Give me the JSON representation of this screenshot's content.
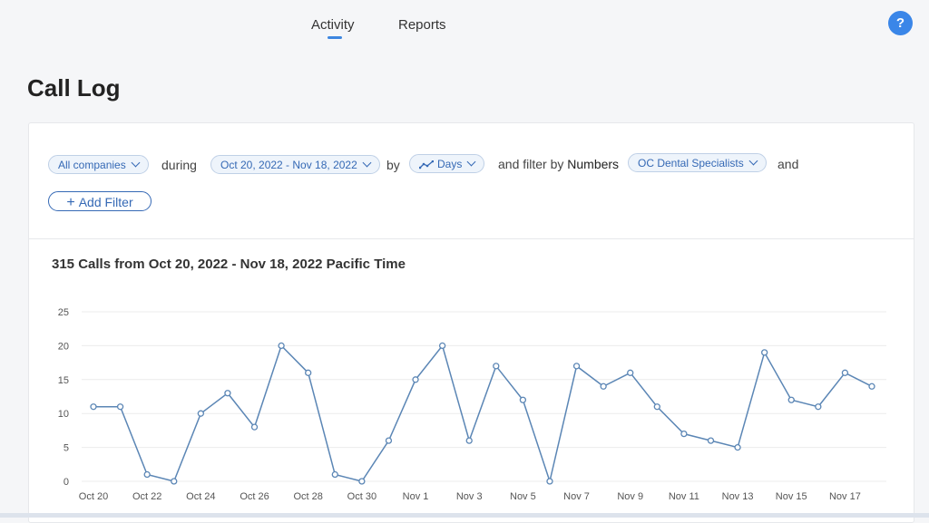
{
  "nav": {
    "tabs": [
      {
        "label": "Activity",
        "active": true
      },
      {
        "label": "Reports",
        "active": false
      }
    ],
    "help_label": "?"
  },
  "page": {
    "title": "Call Log"
  },
  "filters": {
    "company": "All companies",
    "during_label": "during",
    "date_range": "Oct 20, 2022 - Nov 18, 2022",
    "by_label": "by",
    "granularity": "Days",
    "filter_by_label": "and filter by",
    "numbers_label": "Numbers",
    "number": "OC Dental Specialists",
    "and_label": "and",
    "add_filter_label": "Add Filter"
  },
  "accent_color": "#3569b5",
  "line_color": "#5b86b5",
  "chart_data": {
    "type": "line",
    "title": "315 Calls from Oct 20, 2022 - Nov 18, 2022 Pacific Time",
    "xlabel": "",
    "ylabel": "",
    "ylim": [
      0,
      25
    ],
    "yticks": [
      0,
      5,
      10,
      15,
      20,
      25
    ],
    "grid": true,
    "x": [
      "Oct 20",
      "Oct 21",
      "Oct 22",
      "Oct 23",
      "Oct 24",
      "Oct 25",
      "Oct 26",
      "Oct 27",
      "Oct 28",
      "Oct 29",
      "Oct 30",
      "Oct 31",
      "Nov 1",
      "Nov 2",
      "Nov 3",
      "Nov 4",
      "Nov 5",
      "Nov 6",
      "Nov 7",
      "Nov 8",
      "Nov 9",
      "Nov 10",
      "Nov 11",
      "Nov 12",
      "Nov 13",
      "Nov 14",
      "Nov 15",
      "Nov 16",
      "Nov 17",
      "Nov 18"
    ],
    "xtick_labels": [
      "Oct 20",
      "Oct 22",
      "Oct 24",
      "Oct 26",
      "Oct 28",
      "Oct 30",
      "Nov 1",
      "Nov 3",
      "Nov 5",
      "Nov 7",
      "Nov 9",
      "Nov 11",
      "Nov 13",
      "Nov 15",
      "Nov 17"
    ],
    "series": [
      {
        "values": [
          11,
          11,
          1,
          0,
          10,
          13,
          8,
          20,
          16,
          1,
          0,
          6,
          15,
          20,
          6,
          17,
          12,
          0,
          17,
          14,
          16,
          11,
          7,
          6,
          5,
          19,
          12,
          11,
          16,
          14
        ]
      }
    ]
  }
}
